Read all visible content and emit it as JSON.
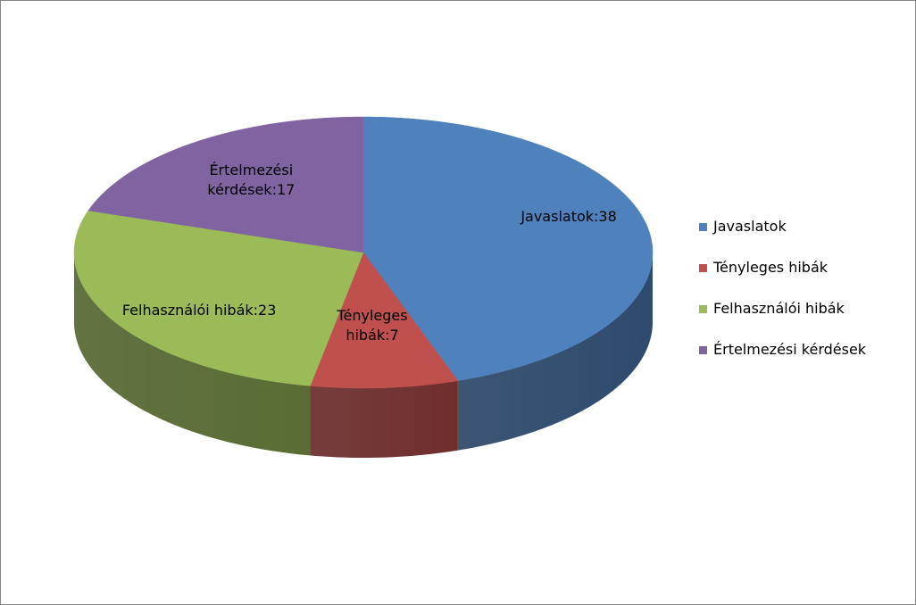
{
  "chart_data": {
    "type": "pie",
    "categories": [
      "Javaslatok",
      "Tényleges hibák",
      "Felhasználói hibák",
      "Értelmezési kérdések"
    ],
    "values": [
      38,
      7,
      23,
      17
    ],
    "value_labels": [
      "Javaslatok:38",
      "Tényleges hibák:7",
      "Felhasználói hibák:23",
      "Értelmezési kérdések:17"
    ],
    "colors": [
      "#4f81bd",
      "#c0504d",
      "#9bbb59",
      "#8064a2"
    ],
    "legend": "right"
  }
}
